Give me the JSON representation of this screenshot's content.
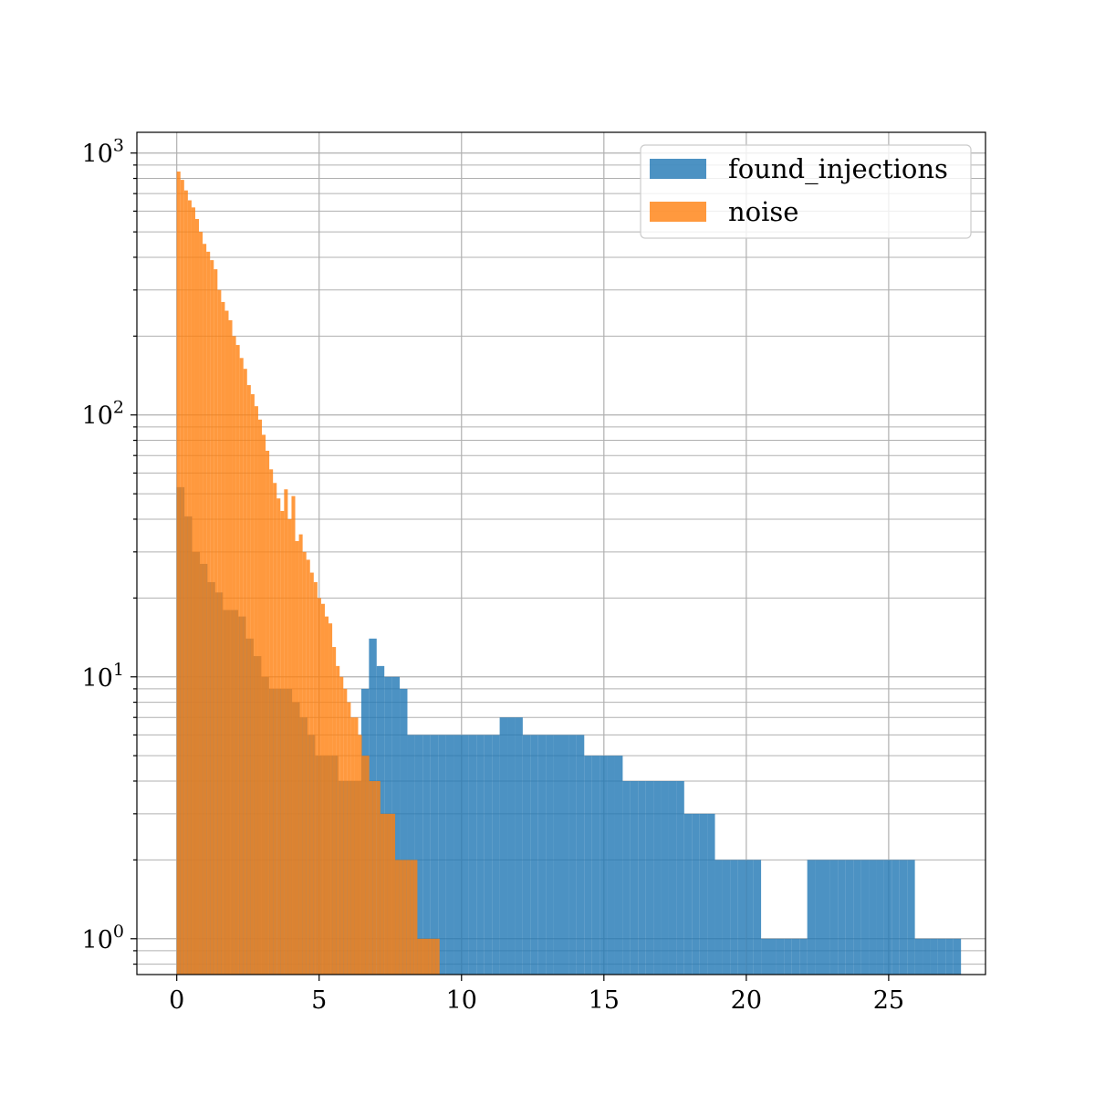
{
  "chart_data": {
    "type": "bar",
    "histtype": "histogram",
    "yscale": "log",
    "xlim": [
      -1.4,
      28.4
    ],
    "ylim": [
      0.73,
      1200
    ],
    "grid": "on (major and minor)",
    "legend_placement": "top-right",
    "xticks": [
      "0",
      "5",
      "10",
      "15",
      "20",
      "25"
    ],
    "xtick_values": [
      0,
      5,
      10,
      15,
      20,
      25
    ],
    "yticks": [
      {
        "value": 1,
        "base": "10",
        "exp": "0"
      },
      {
        "value": 10,
        "base": "10",
        "exp": "1"
      },
      {
        "value": 100,
        "base": "10",
        "exp": "2"
      },
      {
        "value": 1000,
        "base": "10",
        "exp": "3"
      }
    ],
    "series": [
      {
        "name": "found_injections",
        "color": "#1f77b4",
        "opacity": 0.8,
        "bin_start": 0.0,
        "bin_width": 0.27,
        "values": [
          53,
          41,
          30,
          27,
          23,
          21,
          18,
          18,
          17,
          14,
          12,
          10,
          9,
          9,
          9,
          8,
          7,
          6,
          5,
          5,
          5,
          4,
          4,
          4,
          9,
          14,
          11,
          10,
          10,
          9,
          6,
          6,
          6,
          6,
          6,
          6,
          6,
          6,
          6,
          6,
          6,
          6,
          7,
          7,
          7,
          6,
          6,
          6,
          6,
          6,
          6,
          6,
          6,
          5,
          5,
          5,
          5,
          5,
          4,
          4,
          4,
          4,
          4,
          4,
          4,
          4,
          3,
          3,
          3,
          3,
          2,
          2,
          2,
          2,
          2,
          2,
          1,
          1,
          1,
          1,
          1,
          1,
          2,
          2,
          2,
          2,
          2,
          2,
          2,
          2,
          2,
          2,
          2,
          2,
          2,
          2,
          1,
          1,
          1,
          1,
          1,
          1
        ]
      },
      {
        "name": "noise",
        "color": "#ff7f0e",
        "opacity": 0.8,
        "bin_start": 0.0,
        "bin_width": 0.13,
        "values": [
          850,
          790,
          720,
          660,
          620,
          560,
          500,
          450,
          420,
          390,
          360,
          300,
          270,
          250,
          230,
          200,
          185,
          165,
          150,
          130,
          120,
          108,
          96,
          84,
          73,
          62,
          55,
          48,
          43,
          52,
          40,
          49,
          33,
          35,
          30,
          28,
          25,
          23,
          20,
          19,
          17,
          16,
          13,
          11,
          10,
          9,
          8,
          7,
          7,
          6,
          5,
          5,
          4,
          4,
          4,
          3,
          3,
          3,
          3,
          2,
          2,
          2,
          2,
          2,
          2,
          1,
          1,
          1,
          1,
          1,
          1
        ]
      }
    ]
  }
}
